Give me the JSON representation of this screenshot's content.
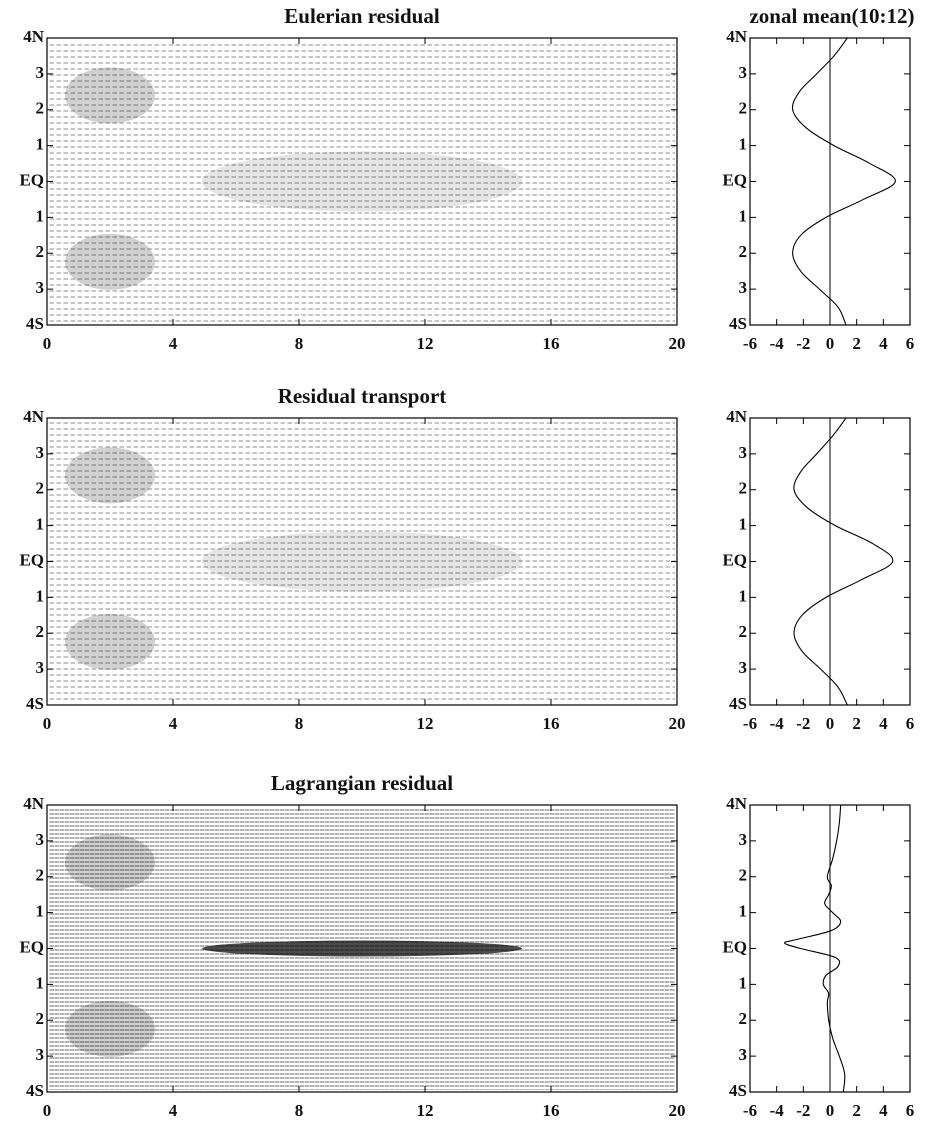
{
  "chart_data": [
    {
      "type": "vector_field",
      "title": "Eulerian residual",
      "xlim": [
        0,
        20
      ],
      "ylim": [
        -4,
        4
      ],
      "xticks": [
        0,
        4,
        8,
        12,
        16,
        20
      ],
      "yticks": [
        {
          "value": 4,
          "label": "4N"
        },
        {
          "value": 3,
          "label": "3"
        },
        {
          "value": 2,
          "label": "2"
        },
        {
          "value": 1,
          "label": "1"
        },
        {
          "value": 0,
          "label": "EQ"
        },
        {
          "value": -1,
          "label": "1"
        },
        {
          "value": -2,
          "label": "2"
        },
        {
          "value": -3,
          "label": "3"
        },
        {
          "value": -4,
          "label": "4S"
        }
      ]
    },
    {
      "type": "profile",
      "title": "zonal mean(10:12)",
      "xlim": [
        -6,
        6
      ],
      "ylim": [
        -4,
        4
      ],
      "xticks": [
        -6,
        -4,
        -2,
        0,
        2,
        4,
        6
      ],
      "yticks": [
        {
          "value": 4,
          "label": "4N"
        },
        {
          "value": 3,
          "label": "3"
        },
        {
          "value": 2,
          "label": "2"
        },
        {
          "value": 1,
          "label": "1"
        },
        {
          "value": 0,
          "label": "EQ"
        },
        {
          "value": -1,
          "label": "1"
        },
        {
          "value": -2,
          "label": "2"
        },
        {
          "value": -3,
          "label": "3"
        },
        {
          "value": -4,
          "label": "4S"
        }
      ],
      "lat": [
        -4,
        -3.5,
        -3,
        -2.5,
        -2,
        -1.5,
        -1,
        -0.5,
        0,
        0.5,
        1,
        1.5,
        2,
        2.5,
        3,
        3.5,
        4
      ],
      "values": [
        1.2,
        0.6,
        -0.8,
        -2.2,
        -2.8,
        -2.2,
        -0.3,
        2.5,
        4.9,
        3.0,
        0.3,
        -1.8,
        -2.8,
        -2.3,
        -1.0,
        0.3,
        1.3
      ]
    },
    {
      "type": "vector_field",
      "title": "Residual transport",
      "xlim": [
        0,
        20
      ],
      "ylim": [
        -4,
        4
      ],
      "xticks": [
        0,
        4,
        8,
        12,
        16,
        20
      ],
      "yticks": [
        {
          "value": 4,
          "label": "4N"
        },
        {
          "value": 3,
          "label": "3"
        },
        {
          "value": 2,
          "label": "2"
        },
        {
          "value": 1,
          "label": "1"
        },
        {
          "value": 0,
          "label": "EQ"
        },
        {
          "value": -1,
          "label": "1"
        },
        {
          "value": -2,
          "label": "2"
        },
        {
          "value": -3,
          "label": "3"
        },
        {
          "value": -4,
          "label": "4S"
        }
      ]
    },
    {
      "type": "profile",
      "xlim": [
        -6,
        6
      ],
      "ylim": [
        -4,
        4
      ],
      "xticks": [
        -6,
        -4,
        -2,
        0,
        2,
        4,
        6
      ],
      "yticks": [
        {
          "value": 4,
          "label": "4N"
        },
        {
          "value": 3,
          "label": "3"
        },
        {
          "value": 2,
          "label": "2"
        },
        {
          "value": 1,
          "label": "1"
        },
        {
          "value": 0,
          "label": "EQ"
        },
        {
          "value": -1,
          "label": "1"
        },
        {
          "value": -2,
          "label": "2"
        },
        {
          "value": -3,
          "label": "3"
        },
        {
          "value": -4,
          "label": "4S"
        }
      ],
      "lat": [
        -4,
        -3.5,
        -3,
        -2.5,
        -2,
        -1.5,
        -1,
        -0.5,
        0,
        0.5,
        1,
        1.5,
        2,
        2.5,
        3,
        3.5,
        4
      ],
      "values": [
        1.3,
        0.6,
        -0.7,
        -2.1,
        -2.7,
        -2.1,
        -0.3,
        2.4,
        4.7,
        3.2,
        0.4,
        -1.7,
        -2.7,
        -2.2,
        -1.0,
        0.2,
        1.2
      ]
    },
    {
      "type": "vector_field",
      "title": "Lagrangian residual",
      "xlim": [
        0,
        20
      ],
      "ylim": [
        -4,
        4
      ],
      "xticks": [
        0,
        4,
        8,
        12,
        16,
        20
      ],
      "yticks": [
        {
          "value": 4,
          "label": "4N"
        },
        {
          "value": 3,
          "label": "3"
        },
        {
          "value": 2,
          "label": "2"
        },
        {
          "value": 1,
          "label": "1"
        },
        {
          "value": 0,
          "label": "EQ"
        },
        {
          "value": -1,
          "label": "1"
        },
        {
          "value": -2,
          "label": "2"
        },
        {
          "value": -3,
          "label": "3"
        },
        {
          "value": -4,
          "label": "4S"
        }
      ]
    },
    {
      "type": "profile",
      "xlim": [
        -6,
        6
      ],
      "ylim": [
        -4,
        4
      ],
      "xticks": [
        -6,
        -4,
        -2,
        0,
        2,
        4,
        6
      ],
      "yticks": [
        {
          "value": 4,
          "label": "4N"
        },
        {
          "value": 3,
          "label": "3"
        },
        {
          "value": 2,
          "label": "2"
        },
        {
          "value": 1,
          "label": "1"
        },
        {
          "value": 0,
          "label": "EQ"
        },
        {
          "value": -1,
          "label": "1"
        },
        {
          "value": -2,
          "label": "2"
        },
        {
          "value": -3,
          "label": "3"
        },
        {
          "value": -4,
          "label": "4S"
        }
      ],
      "lat": [
        -4,
        -3.5,
        -3,
        -2.5,
        -2,
        -1.5,
        -1.25,
        -1,
        -0.75,
        -0.5,
        -0.25,
        0,
        0.15,
        0.25,
        0.5,
        0.75,
        1,
        1.25,
        1.5,
        1.75,
        2,
        2.5,
        3,
        3.5,
        4
      ],
      "values": [
        1.0,
        1.1,
        0.7,
        0.2,
        -0.1,
        -0.2,
        -0.1,
        -0.5,
        -0.3,
        0.6,
        0.4,
        -2.2,
        -3.4,
        -2.5,
        0.1,
        0.8,
        0.2,
        -0.4,
        -0.1,
        0.1,
        -0.2,
        0.2,
        0.5,
        0.7,
        0.8
      ]
    }
  ]
}
